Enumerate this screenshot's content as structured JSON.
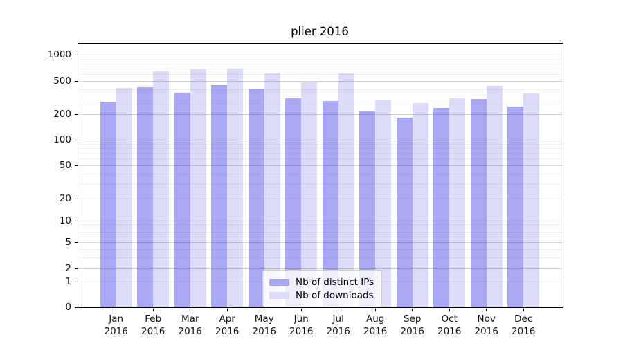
{
  "title": "plier 2016",
  "chart_data": {
    "type": "bar",
    "title": "plier 2016",
    "categories": [
      "Jan 2016",
      "Feb 2016",
      "Mar 2016",
      "Apr 2016",
      "May 2016",
      "Jun 2016",
      "Jul 2016",
      "Aug 2016",
      "Sep 2016",
      "Oct 2016",
      "Nov 2016",
      "Dec 2016"
    ],
    "month_labels": [
      "Jan",
      "Feb",
      "Mar",
      "Apr",
      "May",
      "Jun",
      "Jul",
      "Aug",
      "Sep",
      "Oct",
      "Nov",
      "Dec"
    ],
    "year_label": "2016",
    "series": [
      {
        "name": "Nb of distinct IPs",
        "color": "#a8a8f4",
        "values": [
          280,
          430,
          370,
          450,
          410,
          315,
          290,
          225,
          185,
          240,
          310,
          250
        ]
      },
      {
        "name": "Nb of downloads",
        "color": "#dcdcf9",
        "values": [
          420,
          650,
          690,
          700,
          620,
          490,
          620,
          300,
          275,
          315,
          440,
          360
        ]
      }
    ],
    "yscale": "symlog",
    "y_ticks": [
      0,
      1,
      2,
      5,
      10,
      20,
      50,
      100,
      200,
      500,
      1000
    ],
    "ylim": [
      0,
      1000
    ],
    "xlabel": "",
    "ylabel": "",
    "grid": "both-horizontal",
    "legend_position": "lower center"
  }
}
